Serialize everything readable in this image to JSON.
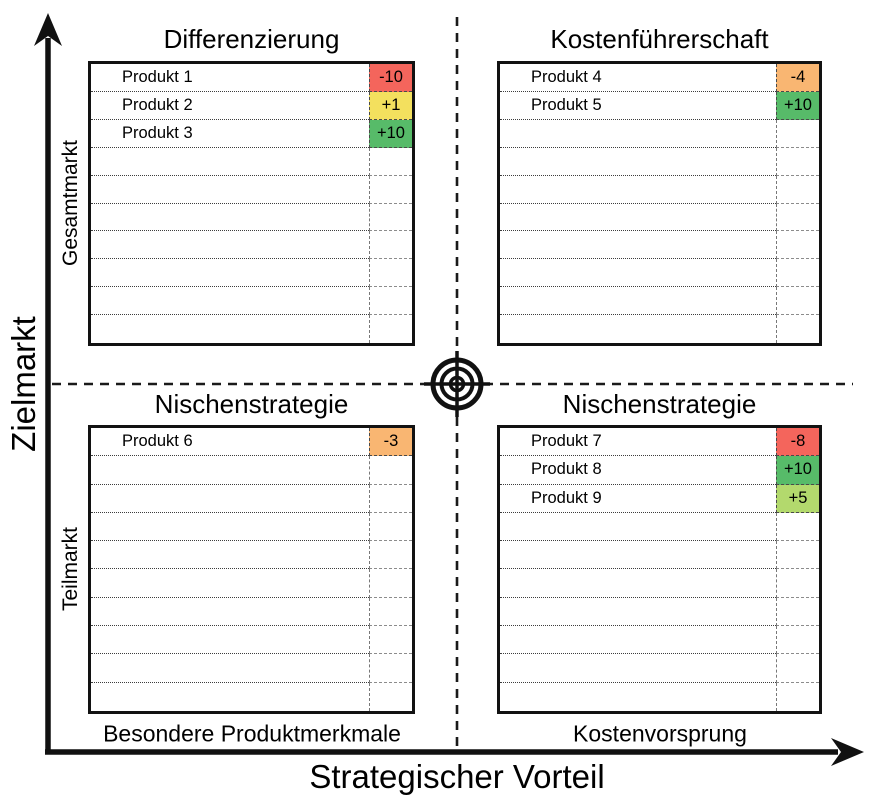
{
  "axes": {
    "y": {
      "label": "Zielmarkt",
      "upper": "Gesamtmarkt",
      "lower": "Teilmarkt"
    },
    "x": {
      "label": "Strategischer Vorteil",
      "left": "Besondere Produktmerkmale",
      "right": "Kostenvorsprung"
    }
  },
  "center_icon": "target-bullseye",
  "score_colors": {
    "very_negative": "#f4655c",
    "negative": "#f9b672",
    "neutral": "#f3e05e",
    "positive": "#b3d96d",
    "very_positive": "#57bb69"
  },
  "quadrants": [
    {
      "key": "top-left",
      "title": "Differenzierung",
      "rows": 10,
      "products": [
        {
          "name": "Produkt 1",
          "score": "-10",
          "color": "#f4655c"
        },
        {
          "name": "Produkt 2",
          "score": "+1",
          "color": "#f3e05e"
        },
        {
          "name": "Produkt 3",
          "score": "+10",
          "color": "#57bb69"
        }
      ]
    },
    {
      "key": "top-right",
      "title": "Kostenführerschaft",
      "rows": 10,
      "products": [
        {
          "name": "Produkt 4",
          "score": "-4",
          "color": "#f9b672"
        },
        {
          "name": "Produkt 5",
          "score": "+10",
          "color": "#57bb69"
        }
      ]
    },
    {
      "key": "bottom-left",
      "title": "Nischenstrategie",
      "rows": 10,
      "products": [
        {
          "name": "Produkt 6",
          "score": "-3",
          "color": "#f9b672"
        }
      ]
    },
    {
      "key": "bottom-right",
      "title": "Nischenstrategie",
      "rows": 10,
      "products": [
        {
          "name": "Produkt 7",
          "score": "-8",
          "color": "#f4655c"
        },
        {
          "name": "Produkt 8",
          "score": "+10",
          "color": "#57bb69"
        },
        {
          "name": "Produkt 9",
          "score": "+5",
          "color": "#b3d96d"
        }
      ]
    }
  ]
}
